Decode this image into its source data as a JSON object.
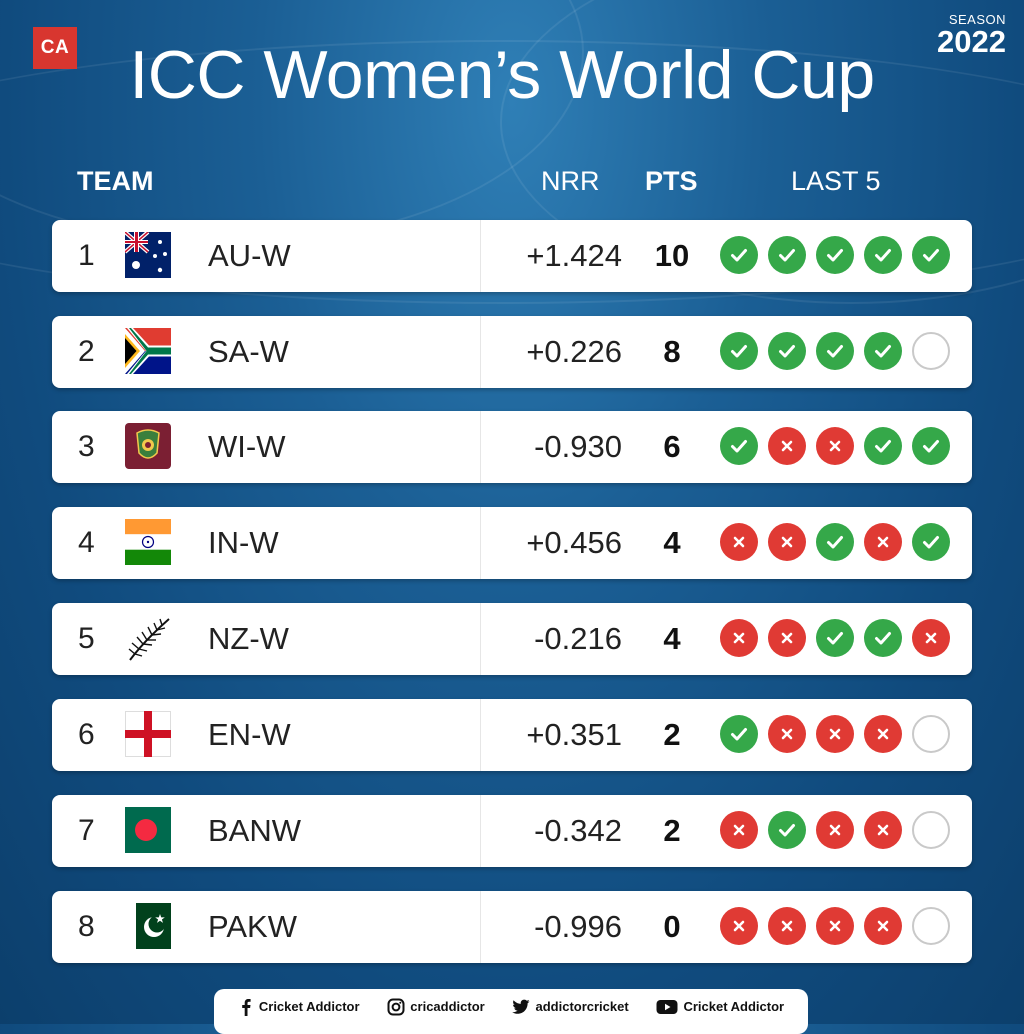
{
  "brand": {
    "logo_text": "CA"
  },
  "season": {
    "label": "SEASON",
    "year": "2022"
  },
  "title": "ICC Women’s World Cup",
  "headers": {
    "team": "TEAM",
    "nrr": "NRR",
    "pts": "PTS",
    "last5": "LAST 5"
  },
  "colors": {
    "win": "#35a849",
    "loss": "#e03a34"
  },
  "teams": [
    {
      "rank": "1",
      "flag": "australia-flag-icon",
      "name": "AU-W",
      "nrr": "+1.424",
      "pts": "10",
      "last5": [
        "W",
        "W",
        "W",
        "W",
        "W"
      ]
    },
    {
      "rank": "2",
      "flag": "south-africa-flag-icon",
      "name": "SA-W",
      "nrr": "+0.226",
      "pts": "8",
      "last5": [
        "W",
        "W",
        "W",
        "W",
        "N"
      ]
    },
    {
      "rank": "3",
      "flag": "west-indies-flag-icon",
      "name": "WI-W",
      "nrr": "-0.930",
      "pts": "6",
      "last5": [
        "W",
        "L",
        "L",
        "W",
        "W"
      ]
    },
    {
      "rank": "4",
      "flag": "india-flag-icon",
      "name": "IN-W",
      "nrr": "+0.456",
      "pts": "4",
      "last5": [
        "L",
        "L",
        "W",
        "L",
        "W"
      ]
    },
    {
      "rank": "5",
      "flag": "new-zealand-fern-icon",
      "name": "NZ-W",
      "nrr": "-0.216",
      "pts": "4",
      "last5": [
        "L",
        "L",
        "W",
        "W",
        "L"
      ]
    },
    {
      "rank": "6",
      "flag": "england-flag-icon",
      "name": "EN-W",
      "nrr": "+0.351",
      "pts": "2",
      "last5": [
        "W",
        "L",
        "L",
        "L",
        "N"
      ]
    },
    {
      "rank": "7",
      "flag": "bangladesh-flag-icon",
      "name": "BANW",
      "nrr": "-0.342",
      "pts": "2",
      "last5": [
        "L",
        "W",
        "L",
        "L",
        "N"
      ]
    },
    {
      "rank": "8",
      "flag": "pakistan-flag-icon",
      "name": "PAKW",
      "nrr": "-0.996",
      "pts": "0",
      "last5": [
        "L",
        "L",
        "L",
        "L",
        "N"
      ]
    }
  ],
  "footer": [
    {
      "icon": "facebook-icon",
      "label": "Cricket Addictor"
    },
    {
      "icon": "instagram-icon",
      "label": "cricaddictor"
    },
    {
      "icon": "twitter-icon",
      "label": "addictorcricket"
    },
    {
      "icon": "youtube-icon",
      "label": "Cricket Addictor"
    }
  ]
}
